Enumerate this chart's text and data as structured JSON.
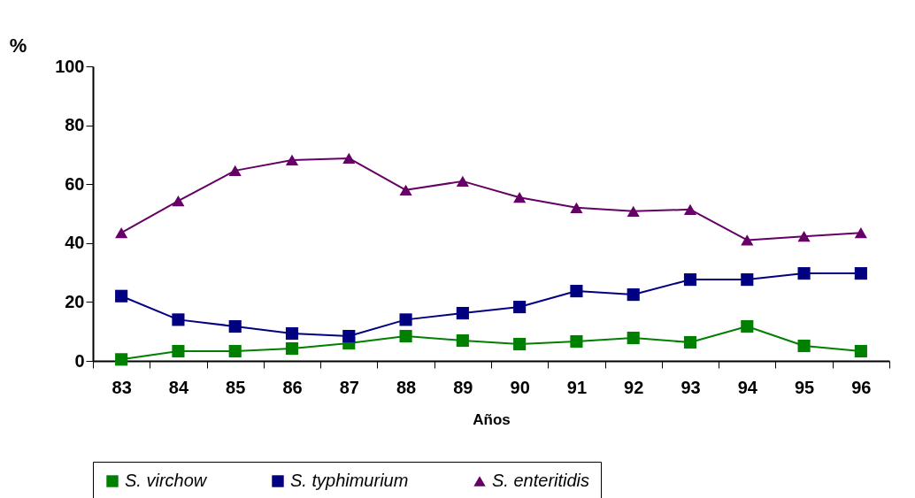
{
  "chart_data": {
    "type": "line",
    "ylabel": "%",
    "xlabel": "Años",
    "categories": [
      "83",
      "84",
      "85",
      "86",
      "87",
      "88",
      "89",
      "90",
      "91",
      "92",
      "93",
      "94",
      "95",
      "96"
    ],
    "ylim": [
      0,
      100
    ],
    "yticks": [
      0,
      20,
      40,
      60,
      80,
      100
    ],
    "legend": "bottom",
    "grid": false,
    "series": [
      {
        "name": "S. virchow",
        "color": "#008000",
        "marker": "square",
        "values": [
          0.5,
          3.3,
          3.3,
          4.2,
          6,
          8.4,
          6.9,
          5.7,
          6.6,
          7.8,
          6.3,
          11.7,
          5.1,
          3.3
        ]
      },
      {
        "name": "S. typhimurium",
        "color": "#000080",
        "marker": "square",
        "values": [
          22,
          14,
          11.7,
          9.3,
          8.4,
          14,
          16.2,
          18.3,
          23.7,
          22.5,
          27.6,
          27.6,
          29.7,
          29.7
        ]
      },
      {
        "name": "S. enteritidis",
        "color": "#660066",
        "marker": "triangle",
        "values": [
          43.5,
          54.3,
          64.6,
          68.2,
          68.8,
          58,
          61,
          55.5,
          52,
          50.8,
          51.4,
          41,
          42.3,
          43.5
        ]
      }
    ]
  }
}
